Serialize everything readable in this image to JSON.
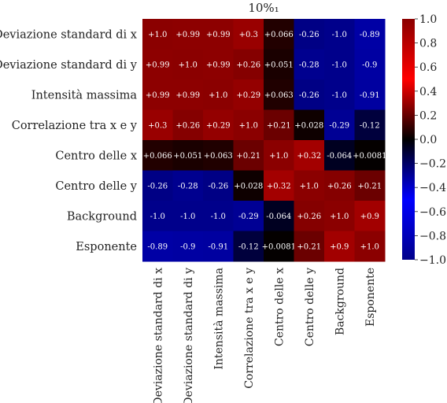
{
  "chart_data": {
    "type": "heatmap",
    "title": "10%₁",
    "row_labels": [
      "Deviazione standard di x",
      "Deviazione standard di y",
      "Intensità massima",
      "Correlazione tra x e y",
      "Centro delle x",
      "Centro delle y",
      "Background",
      "Esponente"
    ],
    "col_labels": [
      "Deviazione standard di x",
      "Deviazione standard di y",
      "Intensità massima",
      "Correlazione tra x e y",
      "Centro delle x",
      "Centro delle y",
      "Background",
      "Esponente"
    ],
    "values": [
      [
        1.0,
        0.99,
        0.99,
        0.3,
        0.066,
        -0.26,
        -1.0,
        -0.89
      ],
      [
        0.99,
        1.0,
        0.99,
        0.26,
        0.051,
        -0.28,
        -1.0,
        -0.9
      ],
      [
        0.99,
        0.99,
        1.0,
        0.29,
        0.063,
        -0.26,
        -1.0,
        -0.91
      ],
      [
        0.3,
        0.26,
        0.29,
        1.0,
        0.21,
        0.028,
        -0.29,
        -0.12
      ],
      [
        0.066,
        0.051,
        0.063,
        0.21,
        1.0,
        0.32,
        -0.064,
        0.0081
      ],
      [
        -0.26,
        -0.28,
        -0.26,
        0.028,
        0.32,
        1.0,
        0.26,
        0.21
      ],
      [
        -1.0,
        -1.0,
        -1.0,
        -0.29,
        -0.064,
        0.26,
        1.0,
        0.9
      ],
      [
        -0.89,
        -0.9,
        -0.91,
        -0.12,
        0.0081,
        0.21,
        0.9,
        1.0
      ]
    ],
    "annotations": [
      [
        "+1.0",
        "+0.99",
        "+0.99",
        "+0.3",
        "+0.066",
        "-0.26",
        "-1.0",
        "-0.89"
      ],
      [
        "+0.99",
        "+1.0",
        "+0.99",
        "+0.26",
        "+0.051",
        "-0.28",
        "-1.0",
        "-0.9"
      ],
      [
        "+0.99",
        "+0.99",
        "+1.0",
        "+0.29",
        "+0.063",
        "-0.26",
        "-1.0",
        "-0.91"
      ],
      [
        "+0.3",
        "+0.26",
        "+0.29",
        "+1.0",
        "+0.21",
        "+0.028",
        "-0.29",
        "-0.12"
      ],
      [
        "+0.066",
        "+0.051",
        "+0.063",
        "+0.21",
        "+1.0",
        "+0.32",
        "-0.064",
        "+0.0081"
      ],
      [
        "-0.26",
        "-0.28",
        "-0.26",
        "+0.028",
        "+0.32",
        "+1.0",
        "+0.26",
        "+0.21"
      ],
      [
        "-1.0",
        "-1.0",
        "-1.0",
        "-0.29",
        "-0.064",
        "+0.26",
        "+1.0",
        "+0.9"
      ],
      [
        "-0.89",
        "-0.9",
        "-0.91",
        "-0.12",
        "+0.0081",
        "+0.21",
        "+0.9",
        "+1.0"
      ]
    ],
    "vmin": -1.0,
    "vmax": 1.0,
    "colormap": "seismic",
    "colormap_stops": [
      "#00008b",
      "#0000ff",
      "#000000",
      "#ff0000",
      "#8b0000"
    ],
    "colorbar_ticks": [
      "1.0",
      "0.8",
      "0.6",
      "0.4",
      "0.2",
      "0.0",
      "−0.2",
      "−0.4",
      "−0.6",
      "−0.8",
      "−1.0"
    ]
  }
}
